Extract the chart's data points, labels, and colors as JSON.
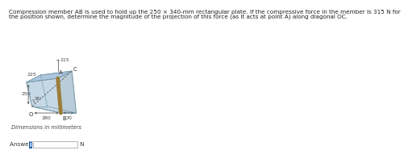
{
  "title_text": "Compression member AB is used to hold up the 250 × 340-mm rectangular plate. If the compressive force in the member is 315 N for\nthe position shown, determine the magnitude of the projection of this force (as it acts at point A) along diagonal OC.",
  "title_fontsize": 5.2,
  "answer_label": "Answer: Fₒᴄ =",
  "answer_unit": "N",
  "dim_label": "Dimensions in millimeters",
  "label_250": "250",
  "label_28": "28°",
  "label_280": "280",
  "label_70": "70",
  "label_115": "115",
  "label_225": "225",
  "label_A": "A",
  "label_B": "B",
  "label_C": "C",
  "label_O": "O",
  "bg_color": "#ffffff",
  "plate_fill_top": "#adc8de",
  "plate_fill_side": "#c5d8e5",
  "plate_fill_bottom": "#c8c8c8",
  "plate_edge": "#7a9aaa",
  "member_color": "#9b7d3a",
  "dim_color": "#444444"
}
